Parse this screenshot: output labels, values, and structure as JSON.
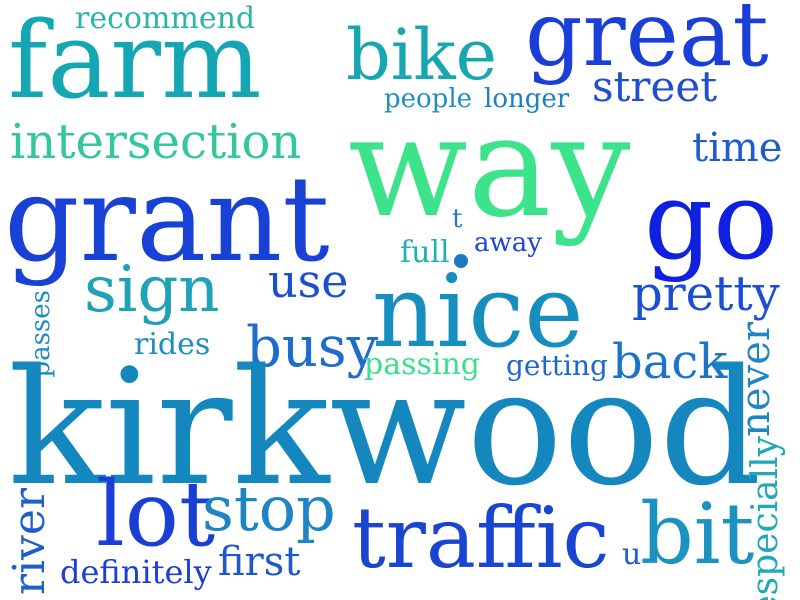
{
  "words": {
    "recommend": {
      "text": "recommend",
      "color": "#2bb5a6"
    },
    "farm": {
      "text": "farm",
      "color": "#14a6b3"
    },
    "bike": {
      "text": "bike",
      "color": "#16a7b0"
    },
    "great": {
      "text": "great",
      "color": "#1a3fd6"
    },
    "street": {
      "text": "street",
      "color": "#1e4fd0"
    },
    "people": {
      "text": "people",
      "color": "#1f8fc4"
    },
    "longer": {
      "text": "longer",
      "color": "#1b7fc6"
    },
    "intersection": {
      "text": "intersection",
      "color": "#33c79c"
    },
    "way": {
      "text": "way",
      "color": "#3ce38a"
    },
    "time": {
      "text": "time",
      "color": "#1f5dcc"
    },
    "grant": {
      "text": "grant",
      "color": "#1842d6"
    },
    "go": {
      "text": "go",
      "color": "#1020e0"
    },
    "t": {
      "text": "t",
      "color": "#1f7cc6"
    },
    "full": {
      "text": "full",
      "color": "#22b0b0"
    },
    "away": {
      "text": "away",
      "color": "#1c46d4"
    },
    "sign": {
      "text": "sign",
      "color": "#1fa1b8"
    },
    "use": {
      "text": "use",
      "color": "#1a4fd2"
    },
    "nice": {
      "text": "nice",
      "color": "#178fbe"
    },
    "pretty": {
      "text": "pretty",
      "color": "#1a4fd4"
    },
    "passes": {
      "text": "passes",
      "color": "#1c8bc4"
    },
    "rides": {
      "text": "rides",
      "color": "#1e8cc2"
    },
    "busy": {
      "text": "busy",
      "color": "#1e6ccd"
    },
    "passing": {
      "text": "passing",
      "color": "#3bdf8e"
    },
    "getting": {
      "text": "getting",
      "color": "#1c68cc"
    },
    "back": {
      "text": "back",
      "color": "#1c73c8"
    },
    "never": {
      "text": "never",
      "color": "#1f86c4"
    },
    "kirkwood": {
      "text": "kirkwood",
      "color": "#1487bf"
    },
    "lot": {
      "text": "lot",
      "color": "#1a3fd6"
    },
    "stop": {
      "text": "stop",
      "color": "#1e84c4"
    },
    "traffic": {
      "text": "traffic",
      "color": "#1a45d2"
    },
    "bit": {
      "text": "bit",
      "color": "#1b92c0"
    },
    "especially": {
      "text": "especially",
      "color": "#20a9b4"
    },
    "river": {
      "text": "river",
      "color": "#1e5fcc"
    },
    "definitely": {
      "text": "definitely",
      "color": "#1a3fd6"
    },
    "first": {
      "text": "first",
      "color": "#1e58cc"
    },
    "u": {
      "text": "u",
      "color": "#1f5ecc"
    }
  },
  "dot_color": "#1e78c4"
}
